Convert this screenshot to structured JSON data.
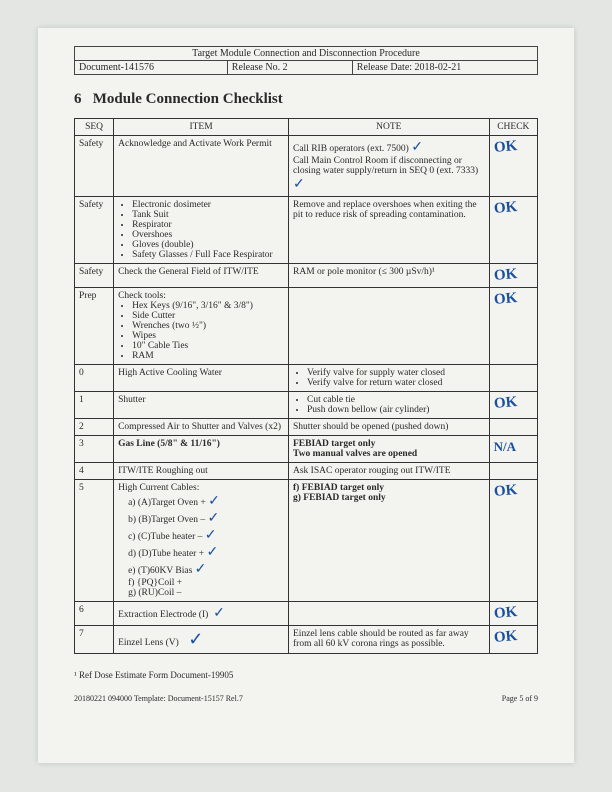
{
  "header": {
    "title": "Target Module Connection and Disconnection Procedure",
    "doc": "Document-141576",
    "release": "Release No. 2",
    "reldate": "Release Date: 2018-02-21"
  },
  "section": {
    "num": "6",
    "title": "Module Connection Checklist"
  },
  "cols": {
    "seq": "SEQ",
    "item": "ITEM",
    "note": "NOTE",
    "check": "CHECK"
  },
  "rows": [
    {
      "seq": "Safety",
      "item": "Acknowledge and Activate Work Permit",
      "note": "Call RIB operators (ext. 7500)\nCall Main Control Room if disconnecting or closing water supply/return in SEQ 0 (ext. 7333)",
      "check": "OK"
    },
    {
      "seq": "Safety",
      "item_list": [
        "Electronic dosimeter",
        "Tank Suit",
        "Respirator",
        "Overshoes",
        "Gloves (double)",
        "Safety Glasses / Full Face Respirator"
      ],
      "note": "Remove and replace overshoes when exiting the pit to reduce risk of spreading contamination.",
      "check": "OK"
    },
    {
      "seq": "Safety",
      "item": "Check the General Field of ITW/ITE",
      "note": "RAM or pole monitor (≤ 300 µSv/h)¹",
      "check": "OK"
    },
    {
      "seq": "Prep",
      "item_pre": "Check tools:",
      "item_list": [
        "Hex Keys (9/16\", 3/16\" & 3/8\")",
        "Side Cutter",
        "Wrenches (two ½\")",
        "Wipes",
        "10\" Cable Ties",
        "RAM"
      ],
      "note": "",
      "check": "OK"
    },
    {
      "seq": "0",
      "item": "High Active Cooling Water",
      "note_list": [
        "Verify valve for supply water closed",
        "Verify valve for return water closed"
      ],
      "check": ""
    },
    {
      "seq": "1",
      "item": "Shutter",
      "note_list": [
        "Cut cable tie",
        "Push down bellow (air cylinder)"
      ],
      "check": "OK"
    },
    {
      "seq": "2",
      "item": "Compressed Air to Shutter and Valves (x2)",
      "note": "Shutter should be opened (pushed down)",
      "check": ""
    },
    {
      "seq": "3",
      "item_bold": "Gas Line (5/8\" & 11/16\")",
      "note_bold": "FEBIAD target only\nTwo manual valves are opened",
      "check": "N/A"
    },
    {
      "seq": "4",
      "item": "ITW/ITE Roughing out",
      "note": "Ask ISAC operator rouging out ITW/ITE",
      "check": ""
    },
    {
      "seq": "5",
      "item_pre": "High Current Cables:",
      "sublist": [
        "a)  (A)Target Oven +",
        "b)  (B)Target Oven –",
        "c)  (C)Tube heater –",
        "d)  (D)Tube heater +",
        "e)  (T)60KV Bias",
        "f)  {PQ}Coil +",
        "g)  (RU)Coil –"
      ],
      "note_bold": "f) FEBIAD target only\ng) FEBIAD target only",
      "check": "OK"
    },
    {
      "seq": "6",
      "item": "Extraction Electrode (I)",
      "note": "",
      "check": "OK"
    },
    {
      "seq": "7",
      "item": "Einzel Lens (V)",
      "note": "Einzel lens cable should be routed as far away from all 60 kV corona rings as possible.",
      "check": "OK"
    }
  ],
  "footnote": "¹ Ref Dose Estimate Form Document-19905",
  "footer": {
    "left": "20180221 094000 Template: Document-15157 Rel.7",
    "right": "Page 5 of 9"
  }
}
